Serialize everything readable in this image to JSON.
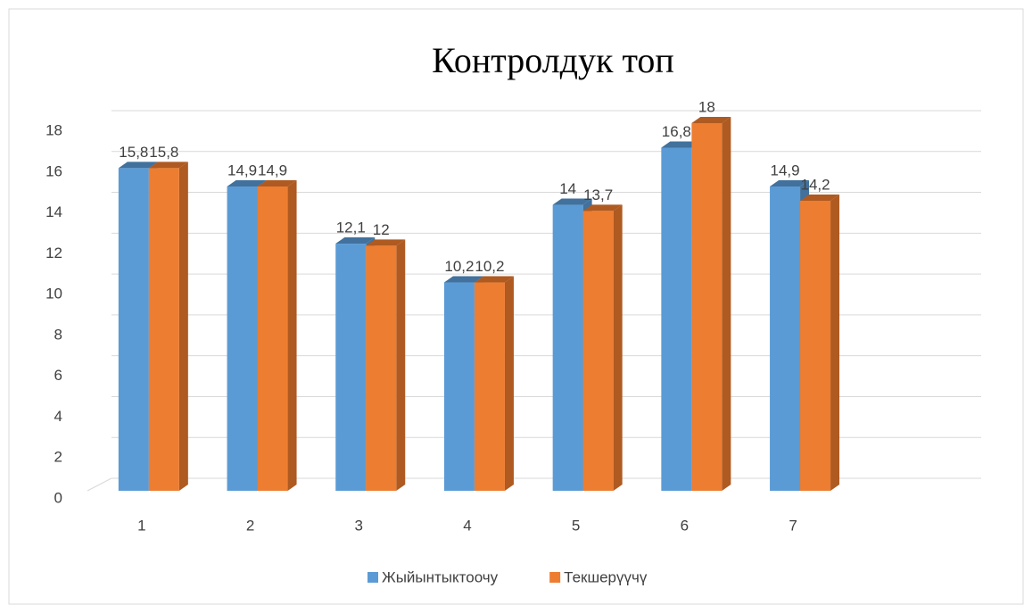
{
  "chart_data": {
    "type": "bar",
    "title": "Контролдук топ",
    "categories": [
      "1",
      "2",
      "3",
      "4",
      "5",
      "6",
      "7"
    ],
    "series": [
      {
        "name": "Жыйынтыктоочу",
        "color": "#5b9bd5",
        "side_color": "#41719c",
        "values": [
          15.8,
          14.9,
          12.1,
          10.2,
          14,
          16.8,
          14.9
        ],
        "value_labels": [
          "15,8",
          "14,9",
          "12,1",
          "10,2",
          "14",
          "16,8",
          "14,9"
        ]
      },
      {
        "name": "Текшерүүчү",
        "color": "#ed7d31",
        "side_color": "#ae5a21",
        "values": [
          15.8,
          14.9,
          12,
          10.2,
          13.7,
          18,
          14.2
        ],
        "value_labels": [
          "15,8",
          "14,9",
          "12",
          "10,2",
          "13,7",
          "18",
          "14,2"
        ]
      }
    ],
    "ylim": [
      0,
      18
    ],
    "yticks": [
      0,
      2,
      4,
      6,
      8,
      10,
      12,
      14,
      16,
      18
    ],
    "grid": true,
    "legend": "bottom"
  }
}
